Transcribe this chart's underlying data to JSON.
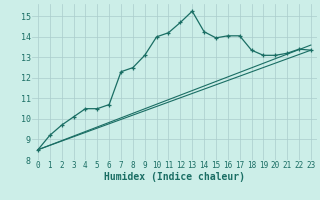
{
  "xlabel": "Humidex (Indice chaleur)",
  "bg_color": "#cceee8",
  "grid_color": "#aacccc",
  "line_color": "#1a6e64",
  "xlim": [
    -0.5,
    23.5
  ],
  "ylim": [
    8,
    15.6
  ],
  "x_ticks": [
    0,
    1,
    2,
    3,
    4,
    5,
    6,
    7,
    8,
    9,
    10,
    11,
    12,
    13,
    14,
    15,
    16,
    17,
    18,
    19,
    20,
    21,
    22,
    23
  ],
  "y_ticks": [
    8,
    9,
    10,
    11,
    12,
    13,
    14,
    15
  ],
  "main_x": [
    0,
    1,
    2,
    3,
    4,
    5,
    6,
    7,
    8,
    9,
    10,
    11,
    12,
    13,
    14,
    15,
    16,
    17,
    18,
    19,
    20,
    21,
    22,
    23
  ],
  "main_y": [
    8.5,
    9.2,
    9.7,
    10.1,
    10.5,
    10.5,
    10.7,
    12.3,
    12.5,
    13.1,
    14.0,
    14.2,
    14.7,
    15.25,
    14.25,
    13.95,
    14.05,
    14.05,
    13.35,
    13.1,
    13.1,
    13.2,
    13.4,
    13.35
  ],
  "line1_x": [
    0,
    23
  ],
  "line1_y": [
    8.5,
    13.35
  ],
  "line2_x": [
    0,
    23
  ],
  "line2_y": [
    8.5,
    13.6
  ]
}
